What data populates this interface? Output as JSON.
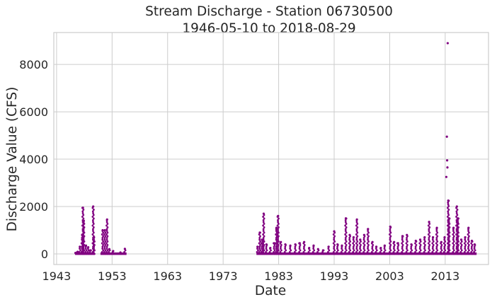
{
  "chart_data": {
    "type": "scatter",
    "title": "Stream Discharge - Station 06730500",
    "subtitle": "1946-05-10 to 2018-08-29",
    "xlabel": "Date",
    "ylabel": "Discharge Value (CFS)",
    "x_ticks": [
      "1943",
      "1953",
      "1963",
      "1973",
      "1983",
      "1993",
      "2003",
      "2013"
    ],
    "y_ticks": [
      "0",
      "2000",
      "4000",
      "6000",
      "8000"
    ],
    "xlim": [
      1942.5,
      2020.8
    ],
    "ylim": [
      -450,
      9350
    ],
    "grid": true,
    "marker_color": "#800080",
    "spikes": [
      {
        "x": 1946.4,
        "y": 40
      },
      {
        "x": 1946.8,
        "y": 90
      },
      {
        "x": 1947.2,
        "y": 300
      },
      {
        "x": 1947.6,
        "y": 800
      },
      {
        "x": 1947.75,
        "y": 1950
      },
      {
        "x": 1947.9,
        "y": 1400
      },
      {
        "x": 1948.3,
        "y": 350
      },
      {
        "x": 1948.7,
        "y": 280
      },
      {
        "x": 1949.1,
        "y": 150
      },
      {
        "x": 1949.6,
        "y": 2000
      },
      {
        "x": 1949.75,
        "y": 700
      },
      {
        "x": 1951.3,
        "y": 1000
      },
      {
        "x": 1951.7,
        "y": 1000
      },
      {
        "x": 1952.1,
        "y": 1450
      },
      {
        "x": 1952.5,
        "y": 200
      },
      {
        "x": 1953.2,
        "y": 120
      },
      {
        "x": 1954.5,
        "y": 60
      },
      {
        "x": 1955.3,
        "y": 210
      },
      {
        "x": 1979.2,
        "y": 300
      },
      {
        "x": 1979.6,
        "y": 900
      },
      {
        "x": 1980.0,
        "y": 600
      },
      {
        "x": 1980.3,
        "y": 1700
      },
      {
        "x": 1980.8,
        "y": 400
      },
      {
        "x": 1981.5,
        "y": 250
      },
      {
        "x": 1982.2,
        "y": 450
      },
      {
        "x": 1982.6,
        "y": 1100
      },
      {
        "x": 1982.9,
        "y": 1600
      },
      {
        "x": 1983.4,
        "y": 500
      },
      {
        "x": 1984.2,
        "y": 400
      },
      {
        "x": 1985.1,
        "y": 350
      },
      {
        "x": 1986.0,
        "y": 400
      },
      {
        "x": 1986.8,
        "y": 450
      },
      {
        "x": 1987.6,
        "y": 500
      },
      {
        "x": 1988.5,
        "y": 250
      },
      {
        "x": 1989.3,
        "y": 350
      },
      {
        "x": 1990.1,
        "y": 200
      },
      {
        "x": 1991.0,
        "y": 150
      },
      {
        "x": 1992.0,
        "y": 300
      },
      {
        "x": 1993.0,
        "y": 950
      },
      {
        "x": 1993.6,
        "y": 400
      },
      {
        "x": 1994.4,
        "y": 350
      },
      {
        "x": 1995.1,
        "y": 1500
      },
      {
        "x": 1995.8,
        "y": 800
      },
      {
        "x": 1996.5,
        "y": 700
      },
      {
        "x": 1997.1,
        "y": 1450
      },
      {
        "x": 1997.7,
        "y": 600
      },
      {
        "x": 1998.4,
        "y": 800
      },
      {
        "x": 1999.1,
        "y": 1050
      },
      {
        "x": 1999.9,
        "y": 500
      },
      {
        "x": 2000.6,
        "y": 300
      },
      {
        "x": 2001.4,
        "y": 250
      },
      {
        "x": 2002.1,
        "y": 350
      },
      {
        "x": 2003.1,
        "y": 1150
      },
      {
        "x": 2003.8,
        "y": 500
      },
      {
        "x": 2004.5,
        "y": 450
      },
      {
        "x": 2005.3,
        "y": 750
      },
      {
        "x": 2006.1,
        "y": 800
      },
      {
        "x": 2006.9,
        "y": 400
      },
      {
        "x": 2007.7,
        "y": 550
      },
      {
        "x": 2008.5,
        "y": 600
      },
      {
        "x": 2009.3,
        "y": 700
      },
      {
        "x": 2010.1,
        "y": 1350
      },
      {
        "x": 2010.8,
        "y": 700
      },
      {
        "x": 2011.5,
        "y": 1100
      },
      {
        "x": 2012.3,
        "y": 500
      },
      {
        "x": 2012.9,
        "y": 700
      },
      {
        "x": 2013.2,
        "y": 3250
      },
      {
        "x": 2013.3,
        "y": 4950
      },
      {
        "x": 2013.35,
        "y": 3950
      },
      {
        "x": 2013.4,
        "y": 3650
      },
      {
        "x": 2013.45,
        "y": 8900
      },
      {
        "x": 2013.55,
        "y": 2250
      },
      {
        "x": 2013.7,
        "y": 1500
      },
      {
        "x": 2014.5,
        "y": 1100
      },
      {
        "x": 2015.1,
        "y": 2000
      },
      {
        "x": 2015.3,
        "y": 1500
      },
      {
        "x": 2015.9,
        "y": 600
      },
      {
        "x": 2016.6,
        "y": 700
      },
      {
        "x": 2017.2,
        "y": 1100
      },
      {
        "x": 2017.8,
        "y": 550
      },
      {
        "x": 2018.3,
        "y": 400
      }
    ],
    "data_ranges": [
      [
        1946.35,
        1949.85
      ],
      [
        1950.9,
        1955.6
      ],
      [
        1979.0,
        2018.66
      ]
    ]
  }
}
